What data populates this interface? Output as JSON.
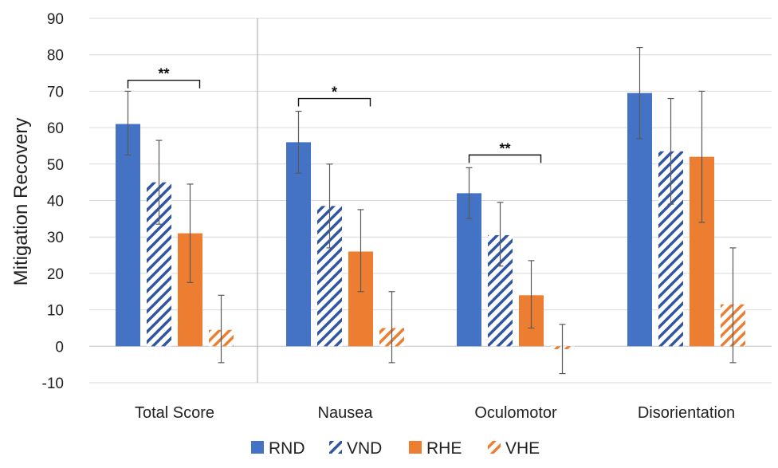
{
  "chart_data": {
    "type": "bar",
    "title": "",
    "xlabel": "",
    "ylabel": "Mitigation Recovery",
    "ylim": [
      -10,
      90
    ],
    "ytick_step": 10,
    "grid": true,
    "legend_position": "bottom",
    "categories": [
      "Total Score",
      "Nausea",
      "Oculomotor",
      "Disorientation"
    ],
    "series": [
      {
        "name": "RND",
        "pattern": "solid",
        "color": "#4472C4",
        "values": [
          61,
          56,
          42,
          69.5
        ],
        "err_low": [
          52.5,
          47.5,
          35,
          57
        ],
        "err_high": [
          70,
          64.5,
          49,
          82
        ]
      },
      {
        "name": "VND",
        "pattern": "hatched",
        "color": "#2F55A4",
        "values": [
          45,
          38.5,
          30.5,
          53.5
        ],
        "err_low": [
          33.5,
          27,
          22,
          39
        ],
        "err_high": [
          56.5,
          50,
          39.5,
          68
        ]
      },
      {
        "name": "RHE",
        "pattern": "solid",
        "color": "#ED7D31",
        "values": [
          31,
          26,
          14,
          52
        ],
        "err_low": [
          17.5,
          15,
          5,
          34
        ],
        "err_high": [
          44.5,
          37.5,
          23.5,
          70
        ]
      },
      {
        "name": "VHE",
        "pattern": "hatched",
        "color": "#ED7D31",
        "values": [
          4.5,
          5,
          -0.8,
          11.5
        ],
        "err_low": [
          -4.5,
          -4.5,
          -7.5,
          -4.5
        ],
        "err_high": [
          14,
          15,
          6,
          27
        ]
      }
    ],
    "significance": [
      {
        "category": "Total Score",
        "from_series": "RND",
        "to_series": "RHE",
        "y": 73,
        "label": "**"
      },
      {
        "category": "Nausea",
        "from_series": "RND",
        "to_series": "RHE",
        "y": 68,
        "label": "*"
      },
      {
        "category": "Oculomotor",
        "from_series": "RND",
        "to_series": "RHE",
        "y": 52.5,
        "label": "**"
      }
    ],
    "separator_after_category": "Total Score"
  }
}
